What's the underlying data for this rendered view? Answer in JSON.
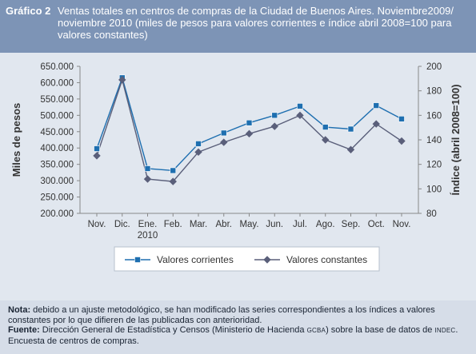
{
  "header": {
    "label": "Gráfico 2",
    "title": "Ventas totales en centros de compras de la Ciudad de Buenos Aires. Noviembre2009/ noviembre 2010 (miles de pesos para valores corrientes e índice abril 2008=100 para valores constantes)"
  },
  "footer": {
    "nota_label": "Nota:",
    "nota_text": "debido a un ajuste metodológico, se han modificado las series correspondientes a los índices a valores constantes por lo que difieren de las publicadas con anterioridad.",
    "fuente_label": "Fuente:",
    "fuente_text_1": "Dirección General de Estadística y Censos (Ministerio de Hacienda",
    "fuente_gcba": "GCBA",
    "fuente_text_2": ") sobre la base de datos de",
    "fuente_indec": "INDEC",
    "fuente_text_3": ". Encuesta de centros de compras."
  },
  "colors": {
    "corrientes": "#1e6fb0",
    "constantes": "#5a5f7a",
    "header_bg": "#7d94b6",
    "panel_bg": "#e1e7ef"
  },
  "chart_data": {
    "type": "line",
    "categories": [
      "Nov.",
      "Dic.",
      "Ene.\n2010",
      "Feb.",
      "Mar.",
      "Abr.",
      "May.",
      "Jun.",
      "Jul.",
      "Ago.",
      "Sep.",
      "Oct.",
      "Nov."
    ],
    "ylabel": "Miles de pesos",
    "y2label": "Índice (abril 2008=100)",
    "ylim": [
      200000,
      650000
    ],
    "y2lim": [
      80,
      200
    ],
    "yticks": [
      "650.000",
      "600.000",
      "550.000",
      "500.000",
      "450.000",
      "400.000",
      "350.000",
      "300.000",
      "250.000",
      "200.000"
    ],
    "y2ticks": [
      "200",
      "180",
      "160",
      "140",
      "120",
      "100",
      "80"
    ],
    "grid": false,
    "legend_position": "bottom",
    "series": [
      {
        "name": "Valores corrientes",
        "axis": "left",
        "marker": "square",
        "values": [
          398000,
          615000,
          337000,
          331000,
          413000,
          446000,
          477000,
          500000,
          528000,
          464000,
          458000,
          530000,
          489000
        ]
      },
      {
        "name": "Valores constantes",
        "axis": "right",
        "marker": "diamond",
        "values": [
          127,
          189,
          108,
          106,
          130,
          138,
          145,
          151,
          160,
          140,
          132,
          153,
          139
        ]
      }
    ]
  }
}
